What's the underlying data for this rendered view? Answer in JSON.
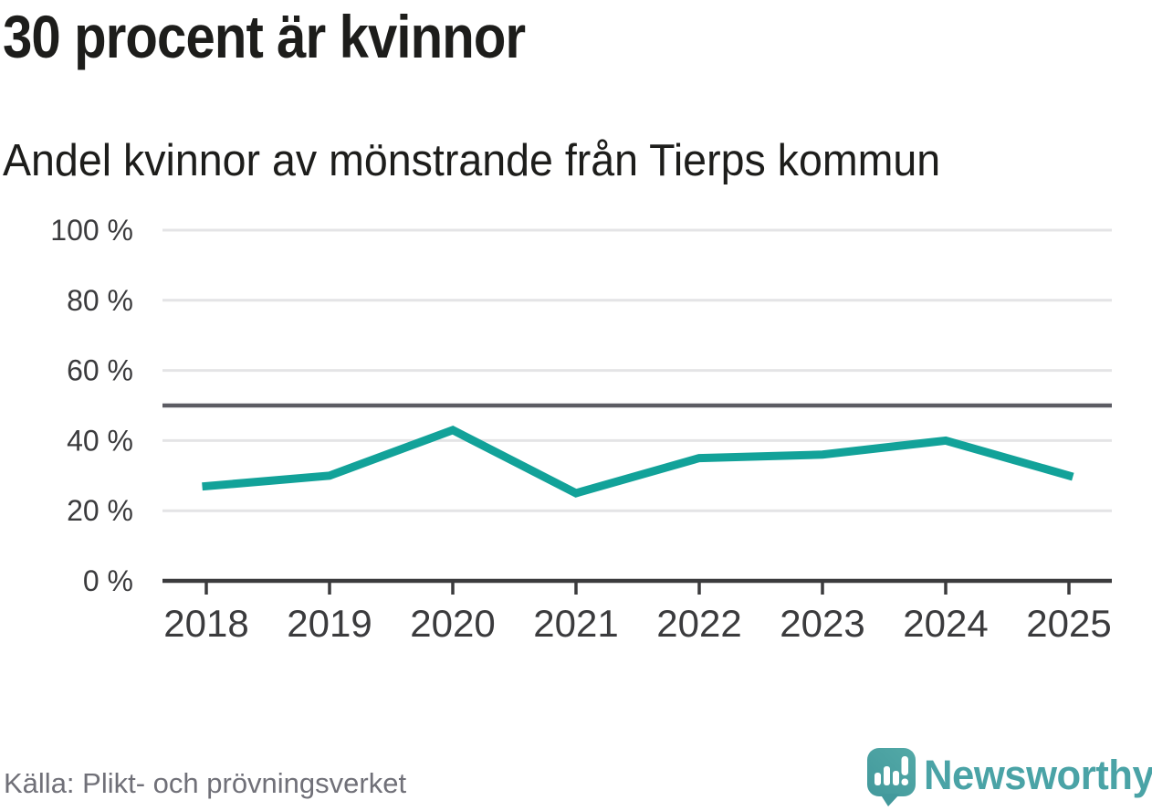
{
  "title": "30 procent är kvinnor",
  "subtitle": "Andel kvinnor av mönstrande från Tierps kommun",
  "source": "Källa: Plikt- och prövningsverket",
  "branding": {
    "name": "Newsworthy",
    "icon": "newsworthy-bubble-chart-icon"
  },
  "colors": {
    "line": "#12a299",
    "reference_line": "#5c5c63",
    "gridline": "#e4e4e6",
    "axis": "#3b3b3d",
    "tick_label": "#3b3b3d",
    "title_text": "#1d1d1b",
    "muted_text": "#707078",
    "brand_teal": "#4aa3a6"
  },
  "chart_data": {
    "type": "line",
    "title": "30 procent är kvinnor",
    "subtitle": "Andel kvinnor av mönstrande från Tierps kommun",
    "categories": [
      "2018",
      "2019",
      "2020",
      "2021",
      "2022",
      "2023",
      "2024",
      "2025"
    ],
    "series": [
      {
        "name": "Andel kvinnor av mönstrande",
        "values": [
          27,
          30,
          43,
          25,
          35,
          36,
          40,
          30
        ]
      }
    ],
    "unit": "%",
    "xlabel": "",
    "ylabel": "",
    "ylim": [
      0,
      100
    ],
    "yticks": [
      0,
      20,
      40,
      60,
      80,
      100
    ],
    "ytick_format": "{v} %",
    "reference_line": 50,
    "grid": true,
    "legend": false,
    "markers": false
  }
}
